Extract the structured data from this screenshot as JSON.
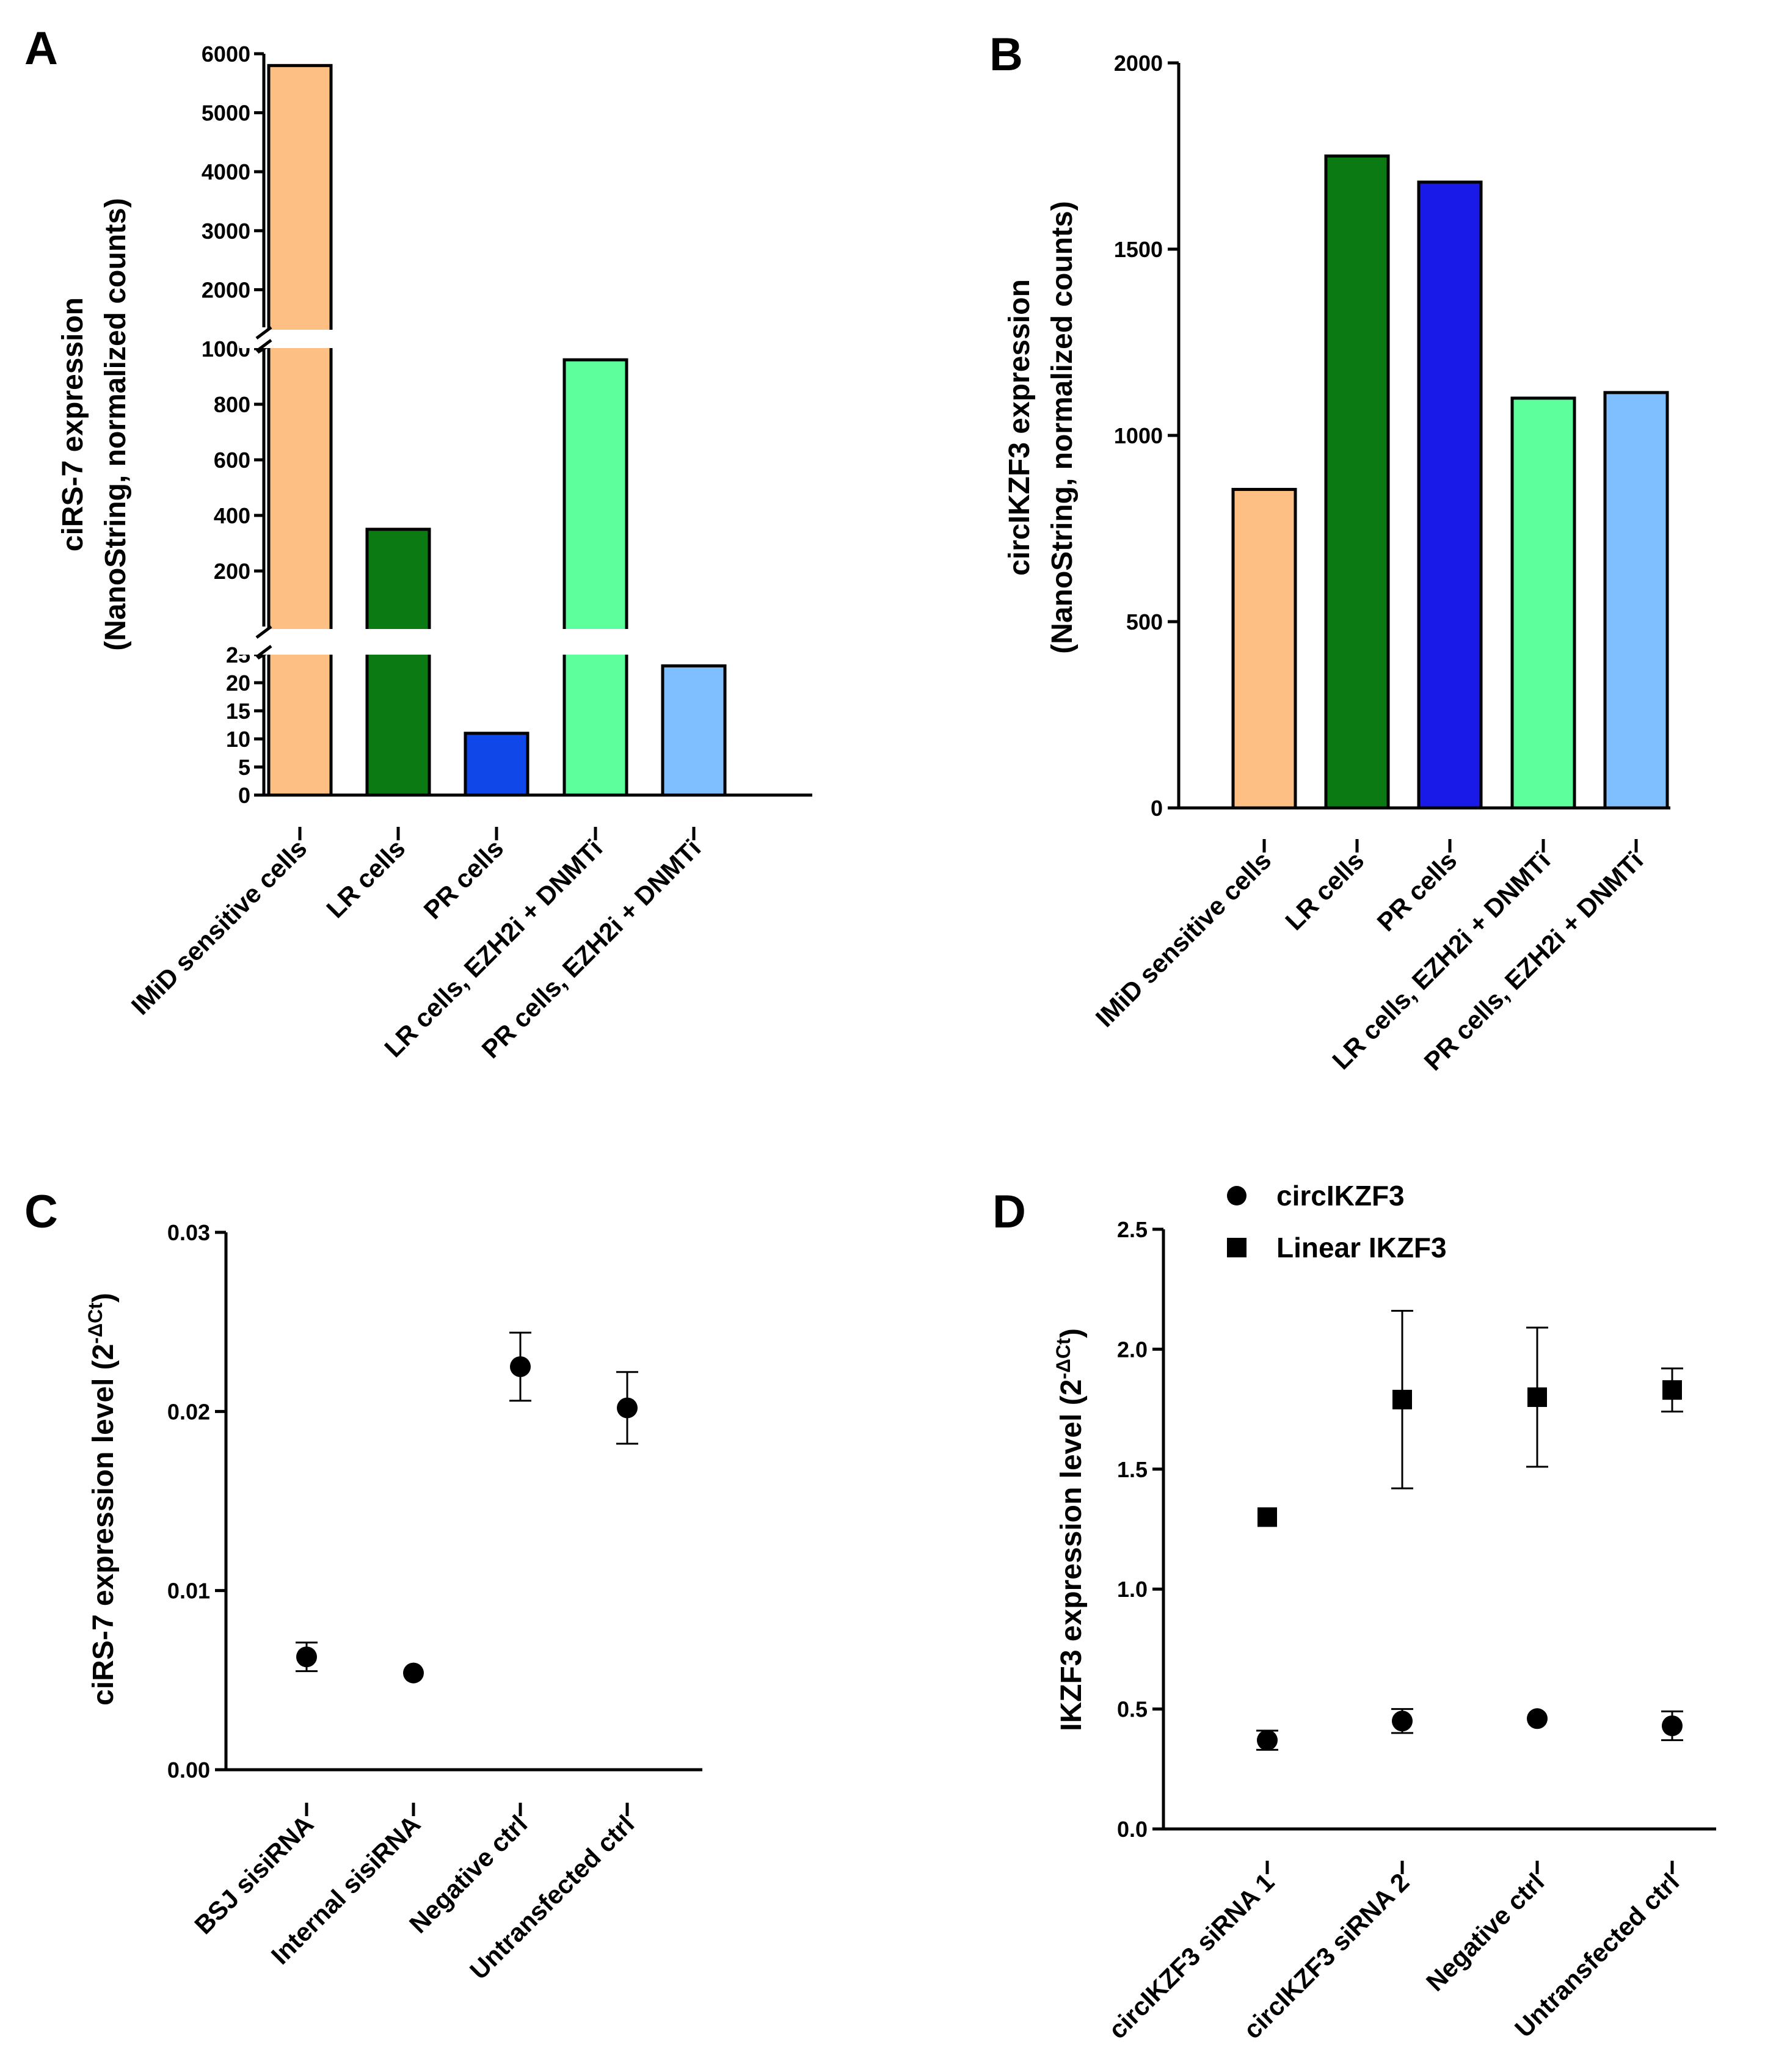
{
  "chart_data": [
    {
      "panel": "A",
      "type": "bar",
      "categories": [
        "IMiD sensitive cells",
        "LR cells",
        "PR cells",
        "LR cells, EZH2i + DNMTi",
        "PR cells, EZH2i + DNMTi"
      ],
      "values": [
        5800,
        350,
        11,
        960,
        23
      ],
      "colors": [
        "#FDBF83",
        "#0C7A12",
        "#0F47E8",
        "#5CFF9C",
        "#7FBFFF"
      ],
      "ylabel_line1": "ciRS-7 expression",
      "ylabel_line2": "(NanoString, normalized counts)",
      "broken_axis": true,
      "segments": [
        {
          "range": [
            0,
            25
          ],
          "ticks": [
            "0",
            "5",
            "10",
            "15",
            "20",
            "25"
          ]
        },
        {
          "range": [
            0,
            1000
          ],
          "ticks": [
            "200",
            "400",
            "600",
            "800",
            "1000"
          ]
        },
        {
          "range": [
            1000,
            6000
          ],
          "ticks": [
            "2000",
            "3000",
            "4000",
            "5000",
            "6000"
          ]
        }
      ]
    },
    {
      "panel": "B",
      "type": "bar",
      "categories": [
        "IMiD sensitive cells",
        "LR cells",
        "PR cells",
        "LR cells, EZH2i + DNMTi",
        "PR cells, EZH2i + DNMTi"
      ],
      "values": [
        855,
        1750,
        1680,
        1100,
        1115
      ],
      "colors": [
        "#FDBF83",
        "#0C7A12",
        "#1A1AE8",
        "#5CFF9C",
        "#7FBFFF"
      ],
      "ylabel_line1": "circIKZF3 expression",
      "ylabel_line2": "(NanoString, normalized counts)",
      "ylim": [
        0,
        2000
      ],
      "ticks": [
        "0",
        "500",
        "1000",
        "1500",
        "2000"
      ]
    },
    {
      "panel": "C",
      "type": "scatter",
      "categories": [
        "BSJ sisiRNA",
        "Internal sisiRNA",
        "Negative ctrl",
        "Untransfected ctrl"
      ],
      "series": [
        {
          "marker": "circle",
          "values": [
            0.0063,
            0.0054,
            0.0225,
            0.0202
          ],
          "errors": [
            0.0008,
            0,
            0.0019,
            0.002
          ]
        }
      ],
      "ylabel_text": "ciRS-7 expression level (2",
      "ylabel_sup": "-ΔCt",
      "ylabel_close": ")",
      "ylim": [
        0,
        0.03
      ],
      "ticks": [
        "0.00",
        "0.01",
        "0.02",
        "0.03"
      ]
    },
    {
      "panel": "D",
      "type": "scatter",
      "categories": [
        "circIKZF3 siRNA 1",
        "circIKZF3 siRNA 2",
        "Negative ctrl",
        "Untransfected ctrl"
      ],
      "series": [
        {
          "name": "circIKZF3",
          "marker": "circle",
          "values": [
            0.37,
            0.45,
            0.46,
            0.43
          ],
          "errors": [
            0.04,
            0.05,
            0,
            0.06
          ]
        },
        {
          "name": "Linear IKZF3",
          "marker": "square",
          "values": [
            1.3,
            1.79,
            1.8,
            1.83
          ],
          "errors": [
            0,
            0.37,
            0.29,
            0.09
          ]
        }
      ],
      "ylabel_text": "IKZF3 expression level (2",
      "ylabel_sup": "-ΔCt",
      "ylabel_close": ")",
      "ylim": [
        0,
        2.5
      ],
      "ticks": [
        "0.0",
        "0.5",
        "1.0",
        "1.5",
        "2.0",
        "2.5"
      ],
      "legend_position": "top-left"
    }
  ]
}
